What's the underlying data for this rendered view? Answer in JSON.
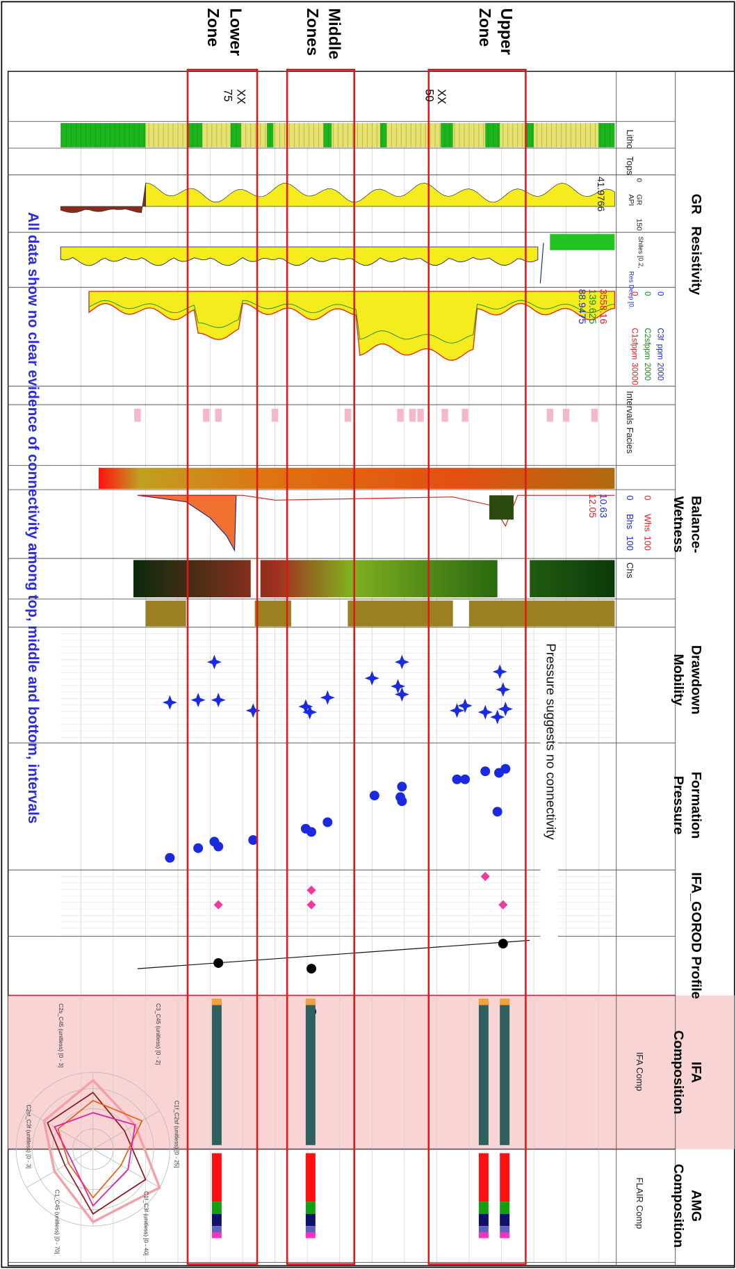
{
  "zones": {
    "upper": [
      "Upper",
      "Zone"
    ],
    "middle": [
      "Middle",
      "Zones"
    ],
    "lower": [
      "Lower",
      "Zone"
    ]
  },
  "depths": [
    [
      "XX",
      "50"
    ],
    [
      "XX",
      "75"
    ]
  ],
  "track_titles": {
    "gr": [
      "GR"
    ],
    "resistivity": [
      "Resistivity"
    ],
    "wetness": [
      "Balance-",
      "Wetness"
    ],
    "mobility": [
      "Drawdown",
      "Mobility"
    ],
    "pressure": [
      "Formation",
      "Pressure"
    ],
    "gor": [
      "IFA_GOR"
    ],
    "od": [
      "OD Profile"
    ],
    "ifa": [
      "IFA",
      "Composition"
    ],
    "amg": [
      "AMG",
      "Composition"
    ]
  },
  "headers": {
    "litho": "Litho",
    "tops": "Tops",
    "intervals": "Intervals",
    "facies": "Facies",
    "chs": "Chs",
    "ifa_comp": "IFA Comp",
    "flair_comp": "FLAIR Comp",
    "res_shallow": "Shlles [0.2,",
    "res_deep": "Res Deep [0."
  },
  "gr_scale": {
    "min": 0,
    "name": "GR",
    "unit": "API",
    "max": 150
  },
  "gas_scales": [
    {
      "min": 0,
      "name": "C3f",
      "unit": "ppm",
      "max": 2000
    },
    {
      "min": 0,
      "name": "C2sf",
      "unit": "ppm",
      "max": 2000
    },
    {
      "min": 0,
      "name": "C1sf",
      "unit": "ppm",
      "max": 30000
    }
  ],
  "wetness_scales": [
    {
      "min": 0,
      "name": "Whs",
      "max": 100
    },
    {
      "min": 0,
      "name": "Bhs",
      "max": 100
    }
  ],
  "readouts": {
    "gr": "41.9766",
    "c1": "3558.16",
    "c2": "139.625",
    "c3": "88.9475",
    "bhs": "10.63",
    "whs": "12.05"
  },
  "annotations": {
    "pressure": "Pressure suggests no connectivity",
    "summary": "All data show no clear evidence of connectivity among top, middle and bottom, intervals"
  },
  "radar_axes": [
    "C1f_C2sf (unitless) [0 - 25]",
    "C1f_C3f (unitless) [0 - 40]",
    "C1_C45 (unitless) [0 - 70]",
    "C2sf_C3f (unitless) [0 - 3]",
    "C2s_C45 (unitless) [0 - 3]",
    "C3_C45 (unitless) [0 - 2]"
  ]
}
